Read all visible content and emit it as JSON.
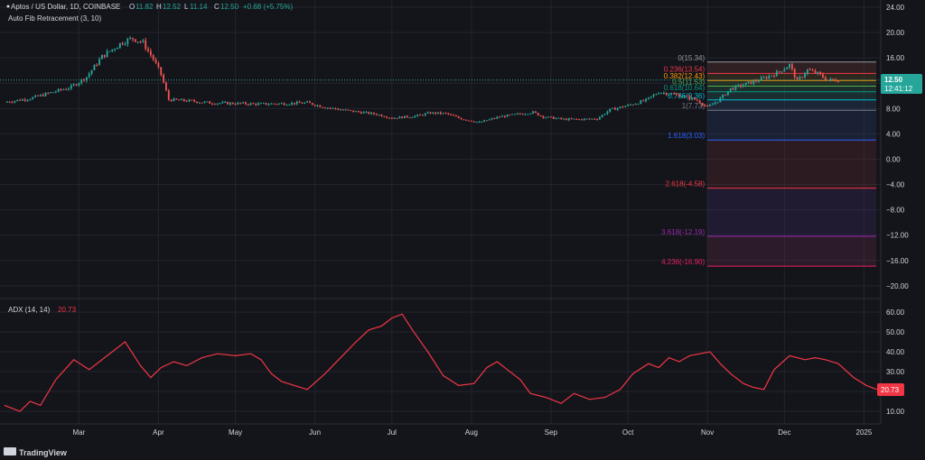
{
  "header": {
    "symbol": "Aptos / US Dollar, 1D, COINBASE",
    "o_label": "O",
    "o_value": "11.82",
    "h_label": "H",
    "h_value": "12.52",
    "l_label": "L",
    "l_value": "11.14",
    "c_label": "C",
    "c_value": "12.50",
    "change": "+0.68 (+5.75%)",
    "indicator": "Auto Fib Retracement (3, 10)"
  },
  "adx_header": {
    "label": "ADX (14, 14)",
    "value": "20.73"
  },
  "price_tag": {
    "price": "12.50",
    "countdown": "12:41:12"
  },
  "adx_tag": "20.73",
  "logo": {
    "text": "TradingView"
  },
  "colors": {
    "background": "#14151b",
    "up": "#26a69a",
    "down": "#ef5350",
    "adx_line": "#f23645",
    "grid": "#23252d",
    "text": "#d1d4dc"
  },
  "chart_data": [
    {
      "type": "candlestick",
      "title": "Aptos / US Dollar, 1D, COINBASE",
      "ylim": [
        -22,
        24
      ],
      "y_ticks": [
        24,
        20,
        16,
        12,
        8,
        4,
        0,
        -4,
        -8,
        -12,
        -16,
        -20
      ],
      "y_tick_labels": [
        "24.00",
        "20.00",
        "16.00",
        "12.00",
        "8.00",
        "4.00",
        "0.00",
        "−4.00",
        "−8.00",
        "−12.00",
        "−16.00",
        "−20.00"
      ],
      "x_ticks": [
        "Mar",
        "Apr",
        "May",
        "Jun",
        "Jul",
        "Aug",
        "Sep",
        "Oct",
        "Nov",
        "Dec",
        "2025"
      ],
      "x_range_days": [
        0,
        325
      ],
      "x_tick_days": [
        29,
        60,
        90,
        121,
        151,
        182,
        213,
        243,
        274,
        304,
        335
      ],
      "grid": true,
      "close_anchors": [
        [
          0,
          9.0
        ],
        [
          10,
          9.6
        ],
        [
          18,
          10.5
        ],
        [
          26,
          11.4
        ],
        [
          32,
          13.0
        ],
        [
          38,
          16.2
        ],
        [
          46,
          18.5
        ],
        [
          50,
          19.1
        ],
        [
          54,
          18.4
        ],
        [
          58,
          15.8
        ],
        [
          61,
          13.4
        ],
        [
          64,
          9.4
        ],
        [
          72,
          9.2
        ],
        [
          80,
          8.9
        ],
        [
          90,
          8.8
        ],
        [
          100,
          8.7
        ],
        [
          110,
          8.8
        ],
        [
          118,
          8.9
        ],
        [
          125,
          8.2
        ],
        [
          135,
          7.6
        ],
        [
          145,
          7.1
        ],
        [
          151,
          6.5
        ],
        [
          160,
          6.8
        ],
        [
          166,
          7.3
        ],
        [
          172,
          7.2
        ],
        [
          178,
          6.4
        ],
        [
          185,
          5.8
        ],
        [
          193,
          6.7
        ],
        [
          200,
          7.1
        ],
        [
          206,
          7.4
        ],
        [
          210,
          6.7
        ],
        [
          218,
          6.3
        ],
        [
          225,
          6.3
        ],
        [
          231,
          6.4
        ],
        [
          236,
          7.8
        ],
        [
          244,
          8.6
        ],
        [
          250,
          9.3
        ],
        [
          255,
          10.6
        ],
        [
          263,
          10.1
        ],
        [
          270,
          9.3
        ],
        [
          274,
          8.2
        ],
        [
          278,
          9.2
        ],
        [
          283,
          11.1
        ],
        [
          290,
          12.0
        ],
        [
          296,
          12.8
        ],
        [
          301,
          13.6
        ],
        [
          306,
          14.9
        ],
        [
          309,
          12.3
        ],
        [
          313,
          14.1
        ],
        [
          317,
          13.5
        ],
        [
          321,
          12.5
        ]
      ],
      "fib_levels": [
        {
          "ratio": "0",
          "price": 15.34,
          "label": "0(15.34)"
        },
        {
          "ratio": "0.236",
          "price": 13.54,
          "label": "0.236(13.54)"
        },
        {
          "ratio": "0.382",
          "price": 12.43,
          "label": "0.382(12.43)"
        },
        {
          "ratio": "0.5",
          "price": 11.53,
          "label": "0.5(11.53)"
        },
        {
          "ratio": "0.618",
          "price": 10.64,
          "label": "0.618(10.64)"
        },
        {
          "ratio": "0.786",
          "price": 9.36,
          "label": "0.786(9.36)"
        },
        {
          "ratio": "1",
          "price": 7.73,
          "label": "1(7.73)"
        },
        {
          "ratio": "1.618",
          "price": 3.03,
          "label": "1.618(3.03)"
        },
        {
          "ratio": "2.618",
          "price": -4.58,
          "label": "2.618(-4.58)"
        },
        {
          "ratio": "3.618",
          "price": -12.19,
          "label": "3.618(-12.19)"
        },
        {
          "ratio": "4.236",
          "price": -16.9,
          "label": "4.236(-16.90)"
        }
      ],
      "fib_zone_days": [
        274,
        325
      ]
    },
    {
      "type": "line",
      "title": "ADX (14, 14)",
      "ylim": [
        8,
        64
      ],
      "y_ticks": [
        60,
        50,
        40,
        30,
        20,
        10
      ],
      "y_tick_labels": [
        "60.00",
        "50.00",
        "40.00",
        "30.00",
        "20.00",
        "10.00"
      ],
      "series": [
        {
          "name": "ADX (14, 14)",
          "points": [
            [
              0,
              13
            ],
            [
              6,
              10
            ],
            [
              10,
              15
            ],
            [
              14,
              13
            ],
            [
              20,
              26
            ],
            [
              27,
              36
            ],
            [
              33,
              31
            ],
            [
              40,
              38
            ],
            [
              47,
              45
            ],
            [
              53,
              33
            ],
            [
              57,
              27
            ],
            [
              61,
              32
            ],
            [
              66,
              35
            ],
            [
              71,
              33
            ],
            [
              77,
              37
            ],
            [
              83,
              39
            ],
            [
              90,
              38
            ],
            [
              96,
              39
            ],
            [
              100,
              36
            ],
            [
              104,
              29
            ],
            [
              108,
              25
            ],
            [
              113,
              23
            ],
            [
              118,
              21
            ],
            [
              125,
              29
            ],
            [
              131,
              37
            ],
            [
              137,
              45
            ],
            [
              142,
              51
            ],
            [
              147,
              53
            ],
            [
              151,
              57
            ],
            [
              155,
              59
            ],
            [
              159,
              51
            ],
            [
              165,
              40
            ],
            [
              171,
              28
            ],
            [
              177,
              23
            ],
            [
              183,
              24
            ],
            [
              188,
              32
            ],
            [
              192,
              35
            ],
            [
              196,
              31
            ],
            [
              201,
              26
            ],
            [
              205,
              19
            ],
            [
              211,
              17
            ],
            [
              217,
              14
            ],
            [
              222,
              19
            ],
            [
              228,
              16
            ],
            [
              234,
              17
            ],
            [
              240,
              21
            ],
            [
              245,
              29
            ],
            [
              251,
              34
            ],
            [
              255,
              32
            ],
            [
              259,
              37
            ],
            [
              263,
              35
            ],
            [
              267,
              38
            ],
            [
              271,
              39
            ],
            [
              275,
              40
            ],
            [
              279,
              34
            ],
            [
              283,
              29
            ],
            [
              288,
              24
            ],
            [
              292,
              22
            ],
            [
              296,
              21
            ],
            [
              300,
              31
            ],
            [
              306,
              38
            ],
            [
              312,
              36
            ],
            [
              316,
              37
            ],
            [
              320,
              36
            ],
            [
              325,
              34
            ],
            [
              331,
              27
            ],
            [
              336,
              23
            ],
            [
              340,
              21
            ]
          ]
        }
      ]
    }
  ]
}
